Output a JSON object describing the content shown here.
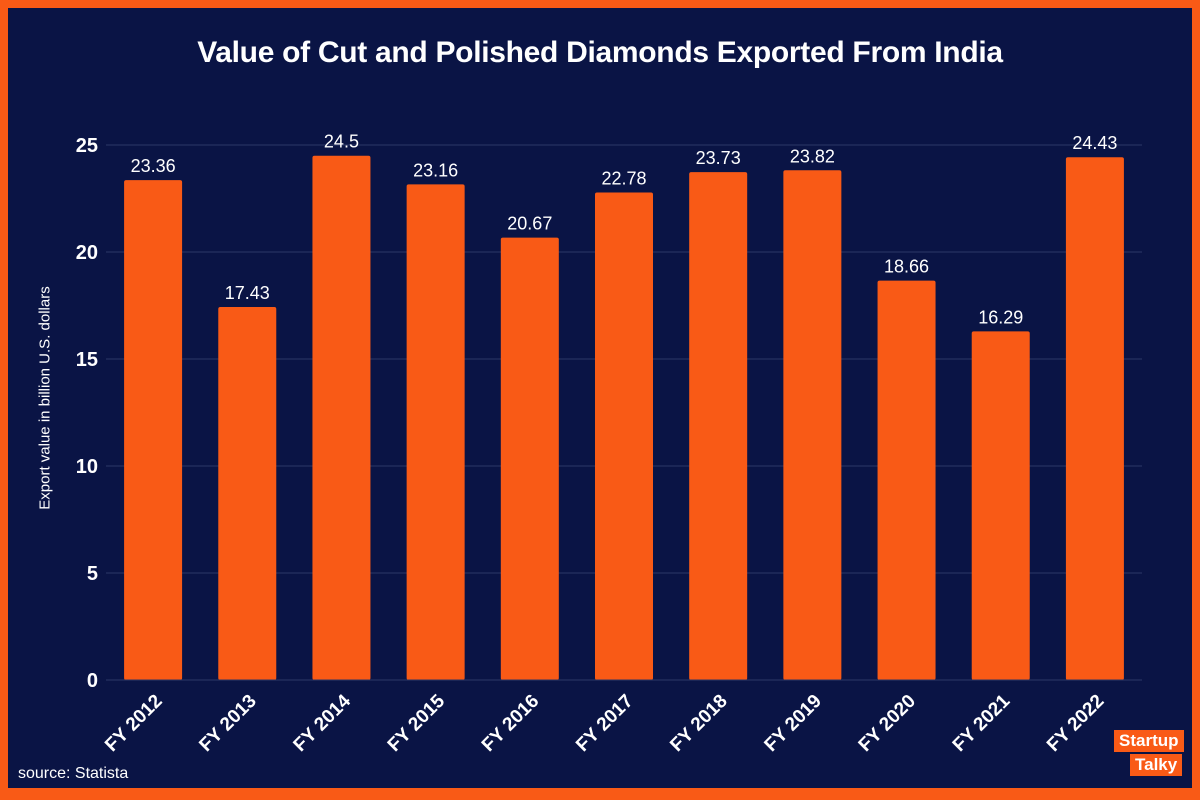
{
  "title": "Value of Cut and Polished Diamonds Exported From India",
  "source_text": "source: Statista",
  "logo": {
    "line1": "Startup",
    "line2": "Talky"
  },
  "colors": {
    "background": "#0a1445",
    "frame": "#f95a16",
    "bar": "#f95a16",
    "text": "#ffffff",
    "grid": "#2c3766"
  },
  "chart_data": {
    "type": "bar",
    "title": "Value of Cut and Polished Diamonds Exported From India",
    "xlabel": "",
    "ylabel": "Export value in billion U.S. dollars",
    "categories": [
      "FY 2012",
      "FY 2013",
      "FY 2014",
      "FY 2015",
      "FY 2016",
      "FY 2017",
      "FY 2018",
      "FY 2019",
      "FY 2020",
      "FY 2021",
      "FY 2022"
    ],
    "values": [
      23.36,
      17.43,
      24.5,
      23.16,
      20.67,
      22.78,
      23.73,
      23.82,
      18.66,
      16.29,
      24.43
    ],
    "value_labels": [
      "23.36",
      "17.43",
      "24.5",
      "23.16",
      "20.67",
      "22.78",
      "23.73",
      "23.82",
      "18.66",
      "16.29",
      "24.43"
    ],
    "ylim": [
      0,
      25
    ],
    "yticks": [
      0,
      5,
      10,
      15,
      20,
      25
    ],
    "grid": true,
    "legend": "none"
  }
}
